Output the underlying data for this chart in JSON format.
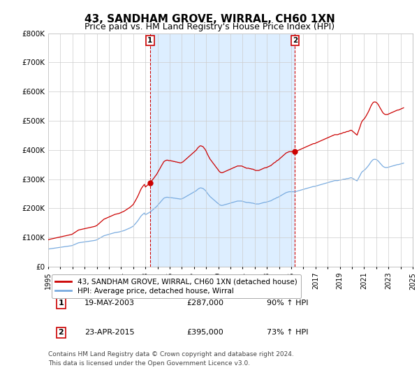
{
  "title": "43, SANDHAM GROVE, WIRRAL, CH60 1XN",
  "subtitle": "Price paid vs. HM Land Registry's House Price Index (HPI)",
  "legend_line1": "43, SANDHAM GROVE, WIRRAL, CH60 1XN (detached house)",
  "legend_line2": "HPI: Average price, detached house, Wirral",
  "transaction1_date": "19-MAY-2003",
  "transaction1_price": "£287,000",
  "transaction1_hpi": "90% ↑ HPI",
  "transaction2_date": "23-APR-2015",
  "transaction2_price": "£395,000",
  "transaction2_hpi": "73% ↑ HPI",
  "footer": "Contains HM Land Registry data © Crown copyright and database right 2024.\nThis data is licensed under the Open Government Licence v3.0.",
  "hpi_color": "#7aace0",
  "price_color": "#cc0000",
  "background_color": "#ffffff",
  "plot_bg_color": "#ffffff",
  "shade_color": "#ddeeff",
  "grid_color": "#cccccc",
  "title_fontsize": 11,
  "subtitle_fontsize": 9,
  "ylim": [
    0,
    800000
  ],
  "yticks": [
    0,
    100000,
    200000,
    300000,
    400000,
    500000,
    600000,
    700000,
    800000
  ],
  "ytick_labels": [
    "£0",
    "£100K",
    "£200K",
    "£300K",
    "£400K",
    "£500K",
    "£600K",
    "£700K",
    "£800K"
  ],
  "xmin": 1995,
  "xmax": 2025,
  "transaction1_year": 2003.38,
  "transaction2_year": 2015.31,
  "transaction1_value": 287000,
  "transaction2_value": 395000,
  "hpi_index": {
    "years": [
      1995.0,
      1995.08,
      1995.17,
      1995.25,
      1995.33,
      1995.42,
      1995.5,
      1995.58,
      1995.67,
      1995.75,
      1995.83,
      1995.92,
      1996.0,
      1996.08,
      1996.17,
      1996.25,
      1996.33,
      1996.42,
      1996.5,
      1996.58,
      1996.67,
      1996.75,
      1996.83,
      1996.92,
      1997.0,
      1997.08,
      1997.17,
      1997.25,
      1997.33,
      1997.42,
      1997.5,
      1997.58,
      1997.67,
      1997.75,
      1997.83,
      1997.92,
      1998.0,
      1998.08,
      1998.17,
      1998.25,
      1998.33,
      1998.42,
      1998.5,
      1998.58,
      1998.67,
      1998.75,
      1998.83,
      1998.92,
      1999.0,
      1999.08,
      1999.17,
      1999.25,
      1999.33,
      1999.42,
      1999.5,
      1999.58,
      1999.67,
      1999.75,
      1999.83,
      1999.92,
      2000.0,
      2000.08,
      2000.17,
      2000.25,
      2000.33,
      2000.42,
      2000.5,
      2000.58,
      2000.67,
      2000.75,
      2000.83,
      2000.92,
      2001.0,
      2001.08,
      2001.17,
      2001.25,
      2001.33,
      2001.42,
      2001.5,
      2001.58,
      2001.67,
      2001.75,
      2001.83,
      2001.92,
      2002.0,
      2002.08,
      2002.17,
      2002.25,
      2002.33,
      2002.42,
      2002.5,
      2002.58,
      2002.67,
      2002.75,
      2002.83,
      2002.92,
      2003.0,
      2003.08,
      2003.17,
      2003.25,
      2003.33,
      2003.42,
      2003.5,
      2003.58,
      2003.67,
      2003.75,
      2003.83,
      2003.92,
      2004.0,
      2004.08,
      2004.17,
      2004.25,
      2004.33,
      2004.42,
      2004.5,
      2004.58,
      2004.67,
      2004.75,
      2004.83,
      2004.92,
      2005.0,
      2005.08,
      2005.17,
      2005.25,
      2005.33,
      2005.42,
      2005.5,
      2005.58,
      2005.67,
      2005.75,
      2005.83,
      2005.92,
      2006.0,
      2006.08,
      2006.17,
      2006.25,
      2006.33,
      2006.42,
      2006.5,
      2006.58,
      2006.67,
      2006.75,
      2006.83,
      2006.92,
      2007.0,
      2007.08,
      2007.17,
      2007.25,
      2007.33,
      2007.42,
      2007.5,
      2007.58,
      2007.67,
      2007.75,
      2007.83,
      2007.92,
      2008.0,
      2008.08,
      2008.17,
      2008.25,
      2008.33,
      2008.42,
      2008.5,
      2008.58,
      2008.67,
      2008.75,
      2008.83,
      2008.92,
      2009.0,
      2009.08,
      2009.17,
      2009.25,
      2009.33,
      2009.42,
      2009.5,
      2009.58,
      2009.67,
      2009.75,
      2009.83,
      2009.92,
      2010.0,
      2010.08,
      2010.17,
      2010.25,
      2010.33,
      2010.42,
      2010.5,
      2010.58,
      2010.67,
      2010.75,
      2010.83,
      2010.92,
      2011.0,
      2011.08,
      2011.17,
      2011.25,
      2011.33,
      2011.42,
      2011.5,
      2011.58,
      2011.67,
      2011.75,
      2011.83,
      2011.92,
      2012.0,
      2012.08,
      2012.17,
      2012.25,
      2012.33,
      2012.42,
      2012.5,
      2012.58,
      2012.67,
      2012.75,
      2012.83,
      2012.92,
      2013.0,
      2013.08,
      2013.17,
      2013.25,
      2013.33,
      2013.42,
      2013.5,
      2013.58,
      2013.67,
      2013.75,
      2013.83,
      2013.92,
      2014.0,
      2014.08,
      2014.17,
      2014.25,
      2014.33,
      2014.42,
      2014.5,
      2014.58,
      2014.67,
      2014.75,
      2014.83,
      2014.92,
      2015.0,
      2015.08,
      2015.17,
      2015.25,
      2015.33,
      2015.42,
      2015.5,
      2015.58,
      2015.67,
      2015.75,
      2015.83,
      2015.92,
      2016.0,
      2016.08,
      2016.17,
      2016.25,
      2016.33,
      2016.42,
      2016.5,
      2016.58,
      2016.67,
      2016.75,
      2016.83,
      2016.92,
      2017.0,
      2017.08,
      2017.17,
      2017.25,
      2017.33,
      2017.42,
      2017.5,
      2017.58,
      2017.67,
      2017.75,
      2017.83,
      2017.92,
      2018.0,
      2018.08,
      2018.17,
      2018.25,
      2018.33,
      2018.42,
      2018.5,
      2018.58,
      2018.67,
      2018.75,
      2018.83,
      2018.92,
      2019.0,
      2019.08,
      2019.17,
      2019.25,
      2019.33,
      2019.42,
      2019.5,
      2019.58,
      2019.67,
      2019.75,
      2019.83,
      2019.92,
      2020.0,
      2020.08,
      2020.17,
      2020.25,
      2020.33,
      2020.42,
      2020.5,
      2020.58,
      2020.67,
      2020.75,
      2020.83,
      2020.92,
      2021.0,
      2021.08,
      2021.17,
      2021.25,
      2021.33,
      2021.42,
      2021.5,
      2021.58,
      2021.67,
      2021.75,
      2021.83,
      2021.92,
      2022.0,
      2022.08,
      2022.17,
      2022.25,
      2022.33,
      2022.42,
      2022.5,
      2022.58,
      2022.67,
      2022.75,
      2022.83,
      2022.92,
      2023.0,
      2023.08,
      2023.17,
      2023.25,
      2023.33,
      2023.42,
      2023.5,
      2023.58,
      2023.67,
      2023.75,
      2023.83,
      2023.92,
      2024.0,
      2024.08,
      2024.17,
      2024.25
    ],
    "values": [
      60000,
      61000,
      61500,
      62000,
      62500,
      63000,
      63500,
      64000,
      64500,
      65000,
      65500,
      66000,
      66500,
      67000,
      67500,
      68000,
      68500,
      69000,
      69500,
      70000,
      70500,
      71000,
      71500,
      72000,
      73000,
      74500,
      76000,
      77500,
      79000,
      80500,
      82000,
      82500,
      83000,
      83500,
      84000,
      84500,
      85000,
      85500,
      86000,
      86500,
      87000,
      87500,
      88000,
      88500,
      89000,
      89500,
      90000,
      91000,
      92000,
      94000,
      96000,
      98000,
      100000,
      102000,
      104000,
      106000,
      107000,
      108000,
      109000,
      110000,
      111000,
      112000,
      113000,
      114000,
      115000,
      116000,
      117000,
      117500,
      118000,
      118500,
      119000,
      120000,
      121000,
      122000,
      123000,
      124000,
      125500,
      127000,
      128500,
      130000,
      131500,
      133000,
      135000,
      137000,
      139000,
      143000,
      147000,
      151000,
      155000,
      160000,
      165000,
      170000,
      175000,
      178000,
      181000,
      184000,
      178000,
      180000,
      182000,
      184000,
      186000,
      188000,
      191000,
      194000,
      197000,
      200000,
      203000,
      206000,
      210000,
      214000,
      218000,
      222000,
      226000,
      230000,
      234000,
      236000,
      237000,
      238000,
      238000,
      237000,
      237000,
      237000,
      236000,
      236000,
      235000,
      235000,
      234000,
      234000,
      233000,
      233000,
      232000,
      232000,
      233000,
      234000,
      236000,
      238000,
      240000,
      242000,
      244000,
      246000,
      248000,
      250000,
      252000,
      254000,
      256000,
      258000,
      260000,
      263000,
      266000,
      268000,
      270000,
      270000,
      269000,
      268000,
      265000,
      262000,
      258000,
      253000,
      248000,
      244000,
      240000,
      237000,
      234000,
      231000,
      228000,
      225000,
      222000,
      219000,
      216000,
      213000,
      211000,
      210000,
      210000,
      211000,
      212000,
      213000,
      214000,
      215000,
      216000,
      217000,
      218000,
      219000,
      220000,
      221000,
      222000,
      223000,
      224000,
      225000,
      225000,
      225000,
      225000,
      225000,
      224000,
      223000,
      222000,
      221000,
      220000,
      220000,
      220000,
      219000,
      219000,
      218000,
      218000,
      217000,
      216000,
      215000,
      215000,
      215000,
      215000,
      216000,
      217000,
      218000,
      219000,
      220000,
      221000,
      221000,
      222000,
      223000,
      224000,
      225000,
      226000,
      228000,
      230000,
      232000,
      233000,
      235000,
      237000,
      238000,
      240000,
      242000,
      244000,
      246000,
      248000,
      250000,
      252000,
      254000,
      255000,
      256000,
      257000,
      257000,
      257000,
      257000,
      257000,
      257000,
      257000,
      258000,
      259000,
      260000,
      261000,
      262000,
      263000,
      264000,
      265000,
      266000,
      267000,
      268000,
      269000,
      270000,
      271000,
      272000,
      273000,
      274000,
      275000,
      275000,
      276000,
      277000,
      278000,
      279000,
      280000,
      281000,
      282000,
      283000,
      284000,
      285000,
      286000,
      287000,
      288000,
      289000,
      290000,
      291000,
      292000,
      293000,
      294000,
      295000,
      295000,
      295000,
      295000,
      296000,
      297000,
      297000,
      298000,
      299000,
      300000,
      300000,
      301000,
      302000,
      302000,
      303000,
      304000,
      305000,
      304000,
      302000,
      300000,
      298000,
      296000,
      294000,
      300000,
      306000,
      313000,
      320000,
      325000,
      328000,
      330000,
      333000,
      337000,
      341000,
      345000,
      350000,
      355000,
      360000,
      364000,
      367000,
      368000,
      368000,
      367000,
      365000,
      362000,
      358000,
      354000,
      350000,
      346000,
      343000,
      341000,
      340000,
      340000,
      340000,
      341000,
      342000,
      343000,
      344000,
      345000,
      346000,
      347000,
      348000,
      349000,
      350000,
      350000,
      351000,
      352000,
      353000,
      354000,
      355000
    ]
  }
}
